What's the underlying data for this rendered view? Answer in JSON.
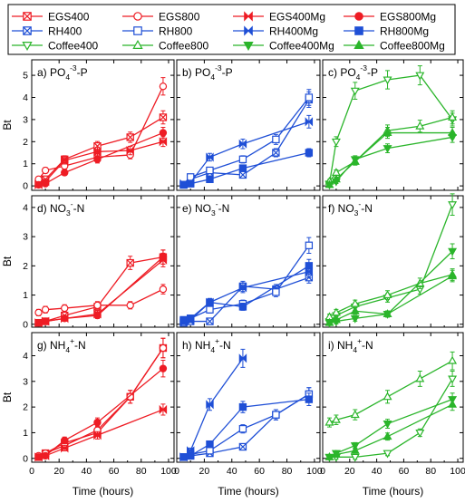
{
  "colors": {
    "red": "#ee1c24",
    "blue": "#1f4fd6",
    "green": "#2bb52b"
  },
  "legend": {
    "entries": [
      {
        "label": "EGS400",
        "color": "red",
        "marker": "square-x",
        "filled": false
      },
      {
        "label": "EGS800",
        "color": "red",
        "marker": "circle",
        "filled": false
      },
      {
        "label": "EGS400Mg",
        "color": "red",
        "marker": "bowtie",
        "filled": true
      },
      {
        "label": "EGS800Mg",
        "color": "red",
        "marker": "circle",
        "filled": true
      },
      {
        "label": "RH400",
        "color": "blue",
        "marker": "square-x",
        "filled": false
      },
      {
        "label": "RH800",
        "color": "blue",
        "marker": "square",
        "filled": false
      },
      {
        "label": "RH400Mg",
        "color": "blue",
        "marker": "bowtie",
        "filled": true
      },
      {
        "label": "RH800Mg",
        "color": "blue",
        "marker": "square",
        "filled": true
      },
      {
        "label": "Coffee400",
        "color": "green",
        "marker": "triangle-down",
        "filled": false
      },
      {
        "label": "Coffee800",
        "color": "green",
        "marker": "triangle-up",
        "filled": false
      },
      {
        "label": "Coffee400Mg",
        "color": "green",
        "marker": "triangle-down",
        "filled": true
      },
      {
        "label": "Coffee800Mg",
        "color": "green",
        "marker": "triangle-up",
        "filled": true
      }
    ]
  },
  "axes": {
    "xlabel": "Time (hours)",
    "ylabel": "Bt",
    "x_ticks": [
      0,
      20,
      40,
      60,
      80,
      100
    ],
    "xlim": [
      0,
      104
    ],
    "y_ticks_top": [
      0,
      1,
      2,
      3,
      4,
      5
    ],
    "ylim_top": [
      -0.2,
      5.7
    ],
    "y_ticks_mid": [
      0,
      1,
      2,
      3,
      4
    ],
    "ylim_mid": [
      -0.1,
      4.4
    ],
    "y_ticks_bot": [
      0,
      1,
      2,
      3,
      4
    ],
    "ylim_bot": [
      -0.15,
      4.9
    ]
  },
  "chart_data": {
    "type": "line",
    "x": [
      5,
      10,
      24,
      48,
      72,
      96
    ],
    "panels": [
      {
        "id": "a",
        "label": "a) PO4-3-P",
        "label_main": "a) PO",
        "label_sub": "4",
        "label_sup": "-3",
        "label_tail": "-P",
        "row": 0,
        "col": 0,
        "color": "red",
        "series": [
          {
            "name": "EGS400",
            "values": [
              0.1,
              0.3,
              1.2,
              1.8,
              2.2,
              3.1
            ]
          },
          {
            "name": "EGS800",
            "values": [
              0.3,
              0.7,
              0.9,
              1.3,
              1.4,
              4.5
            ]
          },
          {
            "name": "EGS400Mg",
            "values": [
              0.05,
              0.2,
              1.15,
              1.55,
              1.6,
              2.0
            ]
          },
          {
            "name": "EGS800Mg",
            "values": [
              0.05,
              0.1,
              0.6,
              1.2,
              null,
              2.4
            ]
          }
        ]
      },
      {
        "id": "b",
        "label": "b) PO4-3-P",
        "label_main": "b) PO",
        "label_sub": "4",
        "label_sup": "-3",
        "label_tail": "-P",
        "row": 0,
        "col": 1,
        "color": "blue",
        "series": [
          {
            "name": "RH400",
            "values": [
              0.05,
              0.3,
              0.6,
              0.5,
              1.5,
              3.9
            ]
          },
          {
            "name": "RH800",
            "values": [
              0.05,
              0.4,
              0.7,
              1.2,
              2.1,
              4.0
            ]
          },
          {
            "name": "RH400Mg",
            "values": [
              0.1,
              0.15,
              1.3,
              1.9,
              null,
              2.9
            ]
          },
          {
            "name": "RH800Mg",
            "values": [
              0.05,
              0.1,
              0.3,
              0.8,
              null,
              1.5
            ]
          }
        ]
      },
      {
        "id": "c",
        "label": "c) PO4-3-P",
        "label_main": "c) PO",
        "label_sub": "4",
        "label_sup": "-3",
        "label_tail": "-P",
        "row": 0,
        "col": 2,
        "color": "green",
        "series": [
          {
            "name": "Coffee400",
            "values": [
              0.1,
              2.0,
              4.3,
              4.8,
              5.0,
              3.0
            ]
          },
          {
            "name": "Coffee800",
            "values": [
              0.2,
              0.6,
              1.1,
              2.5,
              2.7,
              3.1
            ]
          },
          {
            "name": "Coffee400Mg",
            "values": [
              0.05,
              0.2,
              1.2,
              1.7,
              null,
              2.2
            ]
          },
          {
            "name": "Coffee800Mg",
            "values": [
              0.05,
              0.3,
              1.1,
              2.4,
              null,
              2.4
            ]
          }
        ]
      },
      {
        "id": "d",
        "label": "d) NO3-N",
        "label_main": "d) NO",
        "label_sub": "3",
        "label_sup": "-",
        "label_tail": "-N",
        "row": 1,
        "col": 0,
        "color": "red",
        "series": [
          {
            "name": "EGS400",
            "values": [
              0.05,
              0.1,
              0.3,
              0.6,
              2.1,
              2.3
            ]
          },
          {
            "name": "EGS800",
            "values": [
              0.4,
              0.5,
              0.55,
              0.65,
              0.65,
              1.2
            ]
          },
          {
            "name": "EGS400Mg",
            "values": [
              0.05,
              0.1,
              0.2,
              0.35,
              null,
              2.2
            ]
          },
          {
            "name": "EGS800Mg",
            "values": [
              0.05,
              0.1,
              0.2,
              0.3,
              null,
              2.3
            ]
          }
        ]
      },
      {
        "id": "e",
        "label": "e) NO3-N",
        "label_main": "e) NO",
        "label_sub": "3",
        "label_sup": "-",
        "label_tail": "-N",
        "row": 1,
        "col": 1,
        "color": "blue",
        "series": [
          {
            "name": "RH400",
            "values": [
              0.05,
              0.1,
              0.1,
              1.3,
              1.2,
              1.6
            ]
          },
          {
            "name": "RH800",
            "values": [
              0.1,
              0.2,
              0.5,
              0.7,
              1.1,
              2.7
            ]
          },
          {
            "name": "RH400Mg",
            "values": [
              0.1,
              0.15,
              0.75,
              1.25,
              null,
              1.8
            ]
          },
          {
            "name": "RH800Mg",
            "values": [
              0.15,
              0.2,
              0.75,
              0.6,
              null,
              2.0
            ]
          }
        ]
      },
      {
        "id": "f",
        "label": "f) NO3-N",
        "label_main": "f) NO",
        "label_sub": "3",
        "label_sup": "-",
        "label_tail": "-N",
        "row": 1,
        "col": 2,
        "color": "green",
        "series": [
          {
            "name": "Coffee400",
            "values": [
              0.1,
              0.3,
              0.6,
              0.9,
              1.2,
              4.1
            ]
          },
          {
            "name": "Coffee800",
            "values": [
              0.25,
              0.4,
              0.7,
              1.0,
              1.4,
              1.7
            ]
          },
          {
            "name": "Coffee400Mg",
            "values": [
              0.05,
              0.1,
              0.2,
              0.35,
              null,
              2.5
            ]
          },
          {
            "name": "Coffee800Mg",
            "values": [
              0.05,
              0.15,
              0.45,
              0.35,
              null,
              1.65
            ]
          }
        ]
      },
      {
        "id": "g",
        "label": "g) NH4+-N",
        "label_main": "g) NH",
        "label_sub": "4",
        "label_sup": "+",
        "label_tail": "-N",
        "row": 2,
        "col": 0,
        "color": "red",
        "series": [
          {
            "name": "EGS400",
            "values": [
              0.05,
              0.2,
              0.6,
              1.0,
              2.4,
              4.3
            ]
          },
          {
            "name": "EGS800",
            "values": [
              0.1,
              0.2,
              0.5,
              1.1,
              2.4,
              4.3
            ]
          },
          {
            "name": "EGS400Mg",
            "values": [
              0.05,
              0.1,
              0.4,
              0.9,
              null,
              1.9
            ]
          },
          {
            "name": "EGS800Mg",
            "values": [
              0.05,
              0.1,
              0.7,
              1.4,
              null,
              3.5
            ]
          }
        ]
      },
      {
        "id": "h",
        "label": "h) NH4+-N",
        "label_main": "h) NH",
        "label_sub": "4",
        "label_sup": "+",
        "label_tail": "-N",
        "row": 2,
        "col": 1,
        "color": "blue",
        "series": [
          {
            "name": "RH400",
            "values": [
              0.05,
              0.1,
              0.2,
              0.45,
              1.7,
              2.5
            ]
          },
          {
            "name": "RH800",
            "values": [
              0.05,
              0.15,
              0.3,
              1.15,
              1.7,
              2.5
            ]
          },
          {
            "name": "RH400Mg",
            "values": [
              0.05,
              0.3,
              2.1,
              3.9,
              null,
              null
            ]
          },
          {
            "name": "RH800Mg",
            "values": [
              0.05,
              0.1,
              0.55,
              2.0,
              null,
              2.3
            ]
          }
        ]
      },
      {
        "id": "i",
        "label": "i) NH4+-N",
        "label_main": "i) NH",
        "label_sub": "4",
        "label_sup": "+",
        "label_tail": "-N",
        "row": 2,
        "col": 2,
        "color": "green",
        "series": [
          {
            "name": "Coffee400",
            "values": [
              0.05,
              0.05,
              0.05,
              0.2,
              1.0,
              3.1
            ]
          },
          {
            "name": "Coffee800",
            "values": [
              1.4,
              1.5,
              1.7,
              2.4,
              3.1,
              3.8
            ]
          },
          {
            "name": "Coffee400Mg",
            "values": [
              0.05,
              0.2,
              0.5,
              1.35,
              null,
              2.3
            ]
          },
          {
            "name": "Coffee800Mg",
            "values": [
              0.05,
              0.15,
              0.3,
              0.85,
              null,
              2.1
            ]
          }
        ]
      }
    ]
  }
}
